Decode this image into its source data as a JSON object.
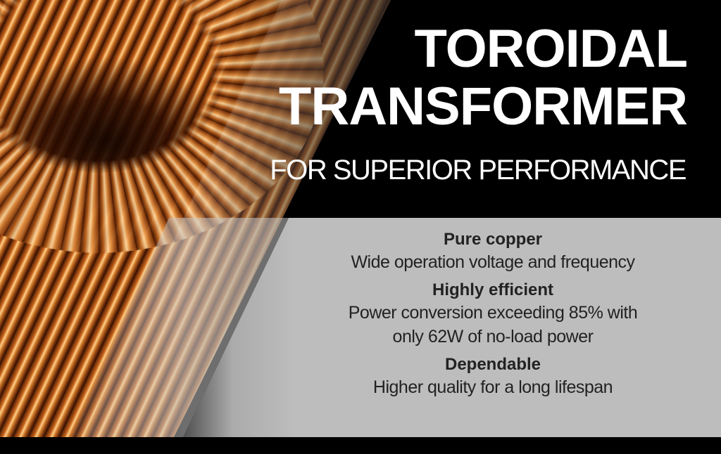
{
  "headline": {
    "line1": "TOROIDAL",
    "line2": "TRANSFORMER",
    "subtitle": "FOR SUPERIOR PERFORMANCE"
  },
  "features": [
    {
      "title": "Pure copper",
      "lines": [
        "Wide operation voltage and frequency"
      ]
    },
    {
      "title": "Highly efficient",
      "lines": [
        "Power conversion exceeding 85% with",
        "only 62W of no-load power"
      ]
    },
    {
      "title": "Dependable",
      "lines": [
        "Higher quality for a long lifespan"
      ]
    }
  ],
  "colors": {
    "background": "#000000",
    "panel": "#bdbdbd",
    "text_dark": "#222222",
    "text_light": "#ffffff",
    "copper": "#c8651c"
  }
}
